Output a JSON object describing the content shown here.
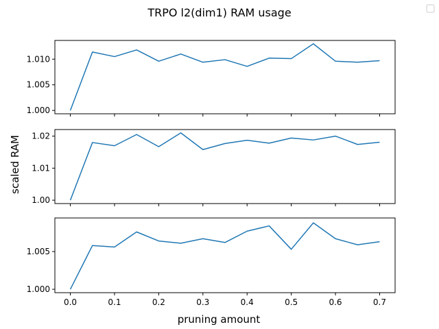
{
  "chart_data": {
    "title": "TRPO l2(dim1) RAM usage",
    "xlabel": "pruning amount",
    "ylabel": "scaled RAM",
    "type": "line",
    "line_color": "#1f77b4",
    "legend": {
      "placement": "top-right",
      "entries": []
    },
    "x": [
      0.0,
      0.05,
      0.1,
      0.15,
      0.2,
      0.25,
      0.3,
      0.35,
      0.4,
      0.45,
      0.5,
      0.55,
      0.6,
      0.65,
      0.7
    ],
    "xticks": [
      0.0,
      0.1,
      0.2,
      0.3,
      0.4,
      0.5,
      0.6,
      0.7
    ],
    "xtick_labels": [
      "0.0",
      "0.1",
      "0.2",
      "0.3",
      "0.4",
      "0.5",
      "0.6",
      "0.7"
    ],
    "xlim": [
      -0.035,
      0.735
    ],
    "subplots": [
      {
        "values": [
          1.0,
          1.0114,
          1.0105,
          1.0118,
          1.0096,
          1.011,
          1.0094,
          1.0099,
          1.0086,
          1.0102,
          1.0101,
          1.013,
          1.0096,
          1.0094,
          1.0097
        ],
        "ylim": [
          0.99935,
          1.01365
        ],
        "yticks": [
          1.0,
          1.005,
          1.01
        ],
        "ytick_labels": [
          "1.000",
          "1.005",
          "1.010"
        ]
      },
      {
        "values": [
          1.0,
          1.018,
          1.017,
          1.0205,
          1.0167,
          1.021,
          1.0158,
          1.0177,
          1.0187,
          1.0178,
          1.0194,
          1.0188,
          1.02,
          1.0174,
          1.0181
        ],
        "ylim": [
          0.99895,
          1.02205
        ],
        "yticks": [
          1.0,
          1.01,
          1.02
        ],
        "ytick_labels": [
          "1.00",
          "1.01",
          "1.02"
        ]
      },
      {
        "values": [
          1.0,
          1.0058,
          1.0056,
          1.0076,
          1.0064,
          1.0061,
          1.0067,
          1.0062,
          1.0077,
          1.0084,
          1.0053,
          1.0088,
          1.0067,
          1.0059,
          1.0063
        ],
        "ylim": [
          0.99955,
          1.00945
        ],
        "yticks": [
          1.0,
          1.005
        ],
        "ytick_labels": [
          "1.000",
          "1.005"
        ]
      }
    ]
  }
}
